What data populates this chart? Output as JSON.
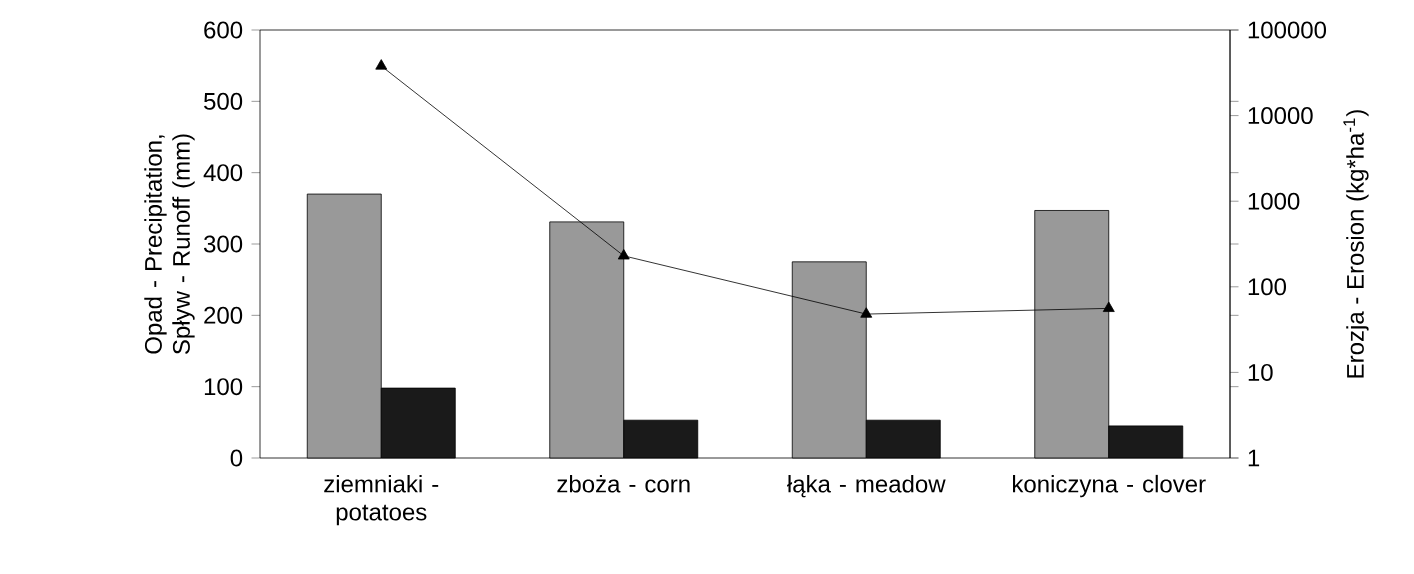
{
  "chart_data": {
    "type": "bar",
    "categories": [
      "ziemniaki - potatoes",
      "zboża - corn",
      "łąka - meadow",
      "koniczyna - clover"
    ],
    "ylabel": "Opad - Precipitation, Spływ - Runoff (mm)",
    "y2label": "Erozja - Erosion (kg*ha$^{-1}$)",
    "ylim": [
      0,
      600
    ],
    "yticks": [
      0,
      100,
      200,
      300,
      400,
      500,
      600
    ],
    "y2lim": [
      1,
      100000
    ],
    "y2ticks": [
      1,
      10,
      100,
      1000,
      10000,
      100000
    ],
    "log": "y2",
    "series": [
      {
        "color": "#999999",
        "values": [
          370,
          331,
          275,
          347
        ]
      },
      {
        "color": "#1a1a1a",
        "values": [
          98,
          53,
          53,
          45
        ]
      },
      {
        "type": "line",
        "axis": "y2",
        "color": "#000000",
        "marker": "triangle",
        "line_style": "solid",
        "values": [
          38000,
          230,
          48,
          56
        ]
      }
    ]
  }
}
